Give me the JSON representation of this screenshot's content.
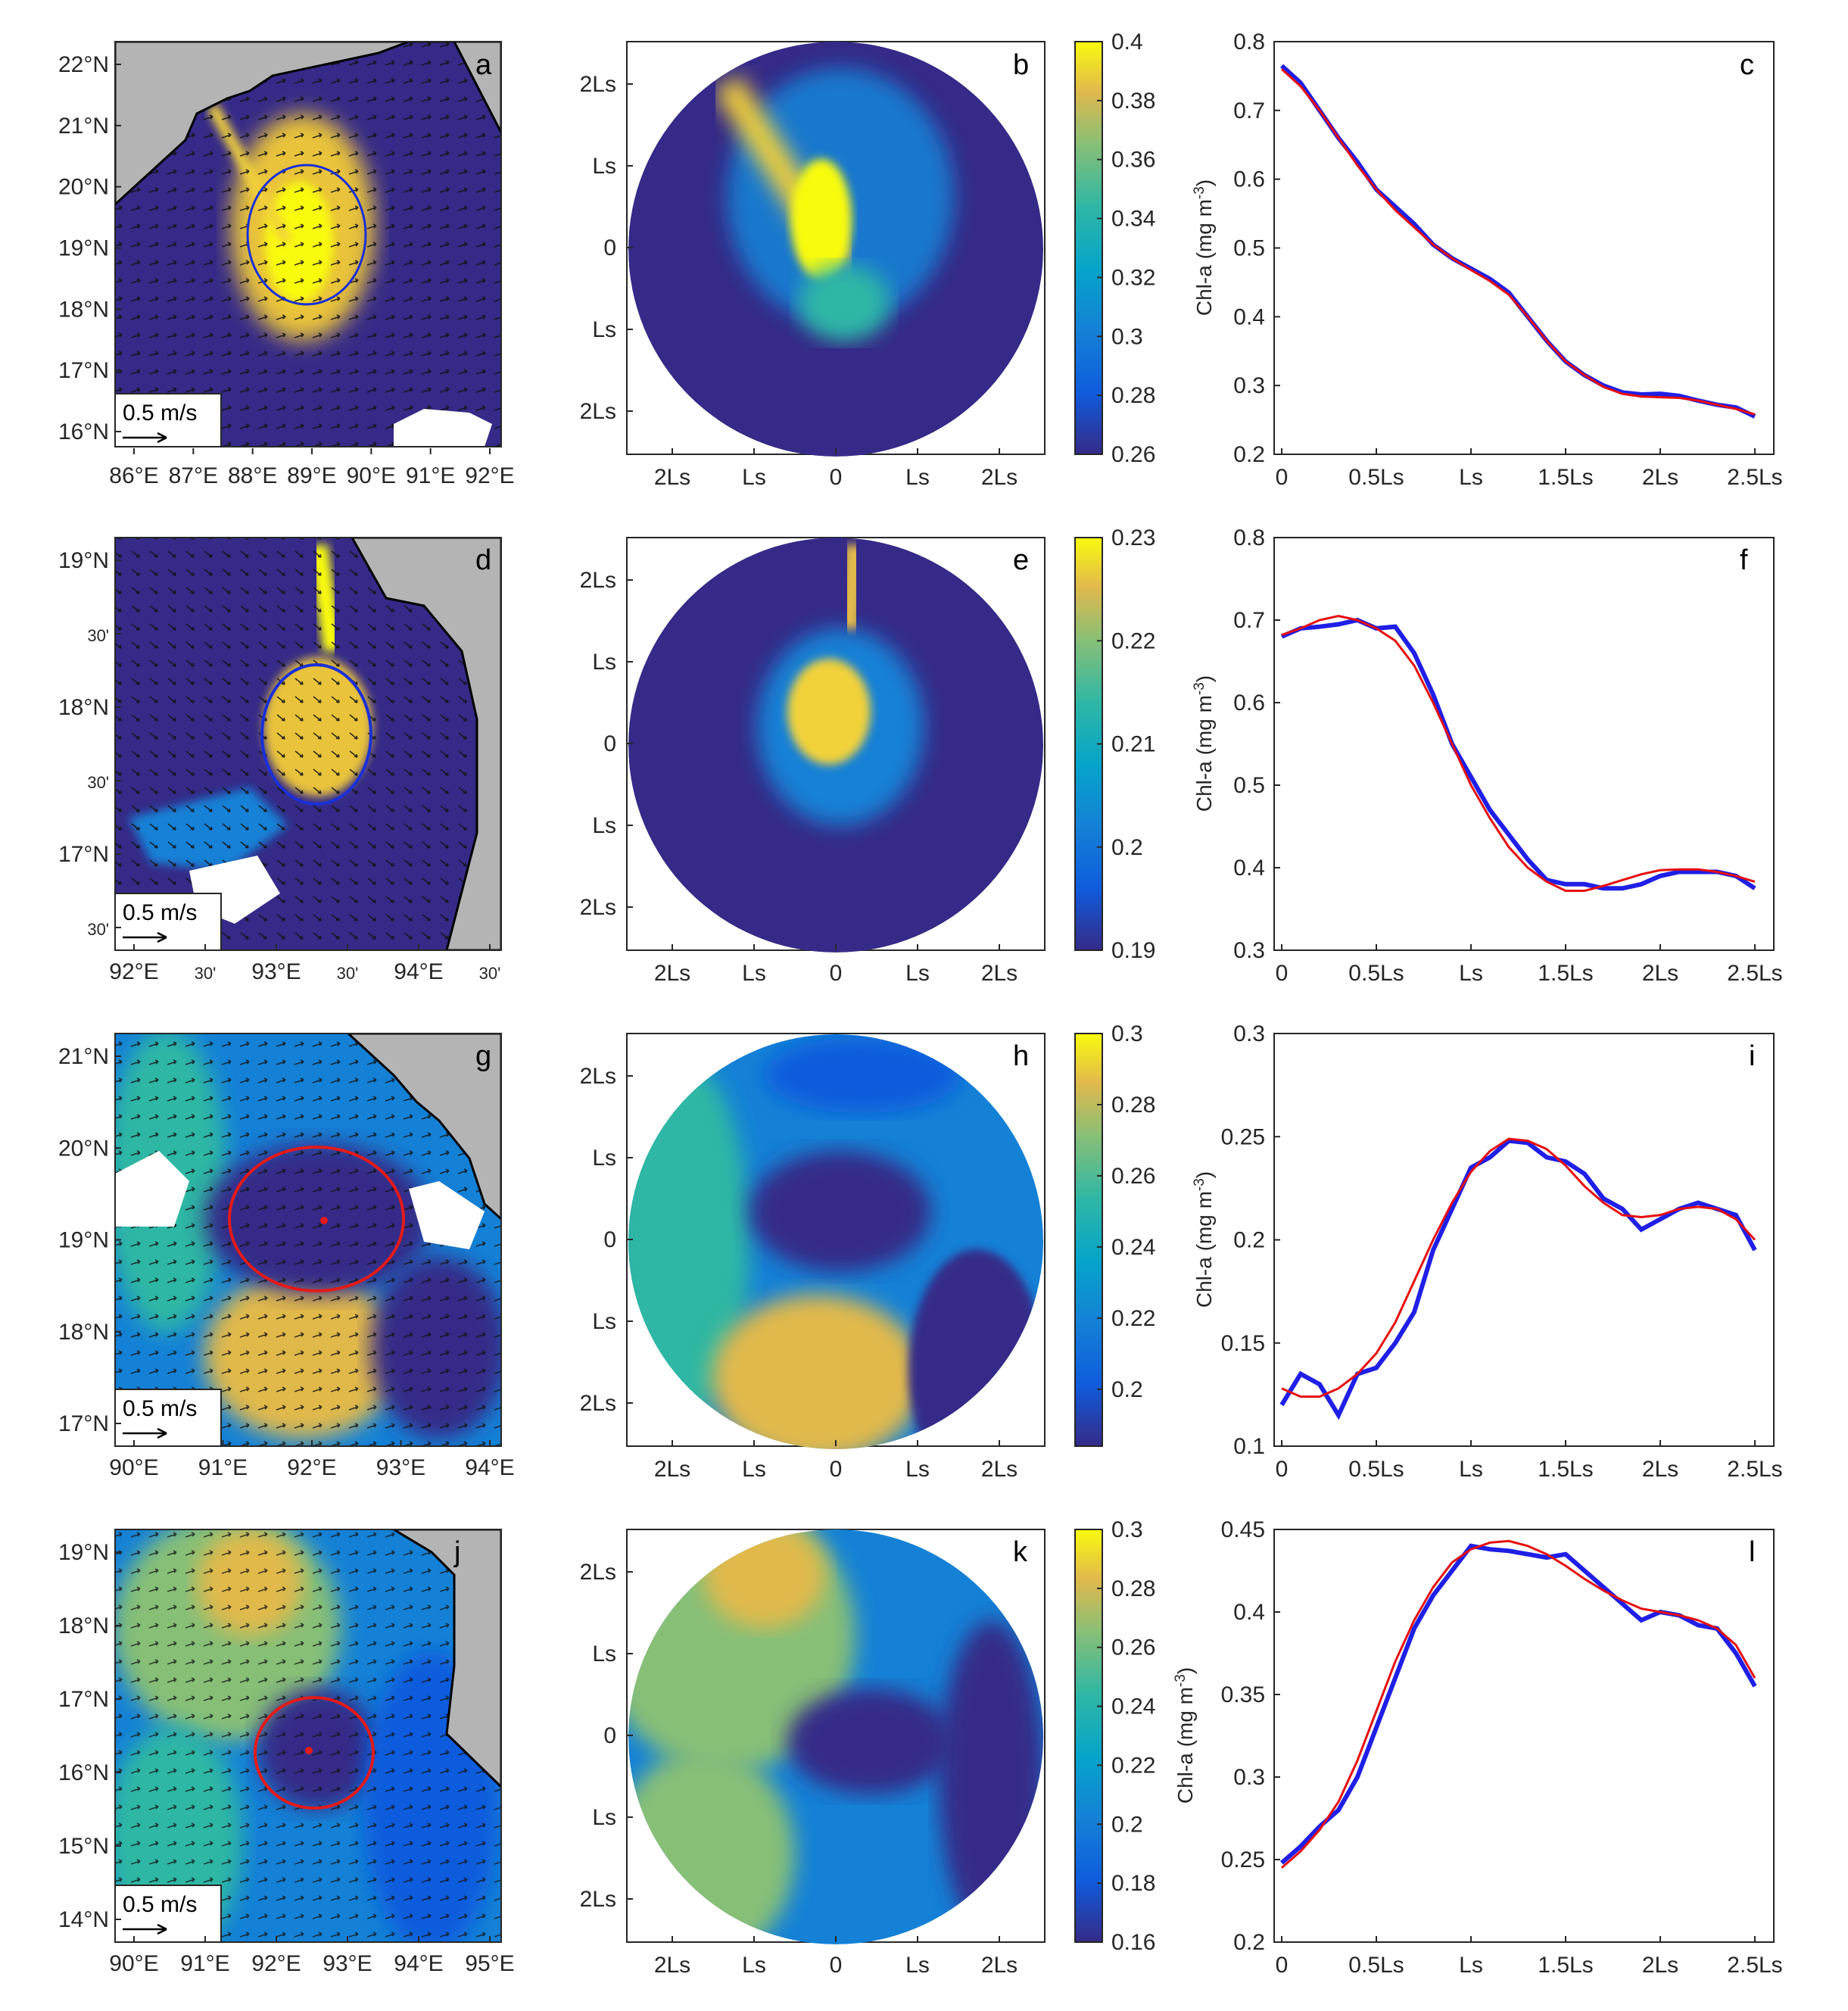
{
  "figure": {
    "rows": [
      {
        "map": {
          "label": "a",
          "lat_ticks": [
            "22°N",
            "21°N",
            "20°N",
            "19°N",
            "18°N",
            "17°N",
            "16°N"
          ],
          "lon_ticks": [
            "86°E",
            "87°E",
            "88°E",
            "89°E",
            "90°E",
            "91°E",
            "92°E"
          ],
          "scale_label": "0.5 m/s",
          "eddy_color": "#1a2fd6",
          "land": "top"
        },
        "composite": {
          "label": "b",
          "cbar_ticks": [
            "0.4",
            "0.38",
            "0.36",
            "0.34",
            "0.32",
            "0.3",
            "0.28",
            "0.26"
          ],
          "pattern": "streak"
        },
        "profile": {
          "label": "c"
        }
      },
      {
        "map": {
          "label": "d",
          "lat_ticks": [
            "19°N",
            "30'",
            "18°N",
            "30'",
            "17°N",
            "30'"
          ],
          "lon_ticks": [
            "92°E",
            "30'",
            "93°E",
            "30'",
            "94°E",
            "30'"
          ],
          "scale_label": "0.5 m/s",
          "eddy_color": "#1a2fd6",
          "land": "right"
        },
        "composite": {
          "label": "e",
          "cbar_ticks": [
            "0.23",
            "0.22",
            "0.21",
            "0.2",
            "0.19"
          ],
          "pattern": "center"
        },
        "profile": {
          "label": "f"
        }
      },
      {
        "map": {
          "label": "g",
          "lat_ticks": [
            "21°N",
            "20°N",
            "19°N",
            "18°N",
            "17°N"
          ],
          "lon_ticks": [
            "90°E",
            "91°E",
            "92°E",
            "93°E",
            "94°E"
          ],
          "scale_label": "0.5 m/s",
          "eddy_color": "#e11b1b",
          "land": "topright"
        },
        "composite": {
          "label": "h",
          "cbar_ticks": [
            "0.3",
            "0.28",
            "0.26",
            "0.24",
            "0.22",
            "0.2"
          ],
          "pattern": "ring"
        },
        "profile": {
          "label": "i"
        }
      },
      {
        "map": {
          "label": "j",
          "lat_ticks": [
            "19°N",
            "18°N",
            "17°N",
            "16°N",
            "15°N",
            "14°N"
          ],
          "lon_ticks": [
            "90°E",
            "91°E",
            "92°E",
            "93°E",
            "94°E",
            "95°E"
          ],
          "scale_label": "0.5 m/s",
          "eddy_color": "#e11b1b",
          "land": "right2"
        },
        "composite": {
          "label": "k",
          "cbar_ticks": [
            "0.3",
            "0.28",
            "0.26",
            "0.24",
            "0.22",
            "0.2",
            "0.18",
            "0.16"
          ],
          "pattern": "ring2"
        },
        "profile": {
          "label": "l"
        }
      }
    ],
    "composite_axis": {
      "y_ticks": [
        "2Ls",
        "Ls",
        "0",
        "Ls",
        "2Ls"
      ],
      "x_ticks": [
        "2Ls",
        "Ls",
        "0",
        "Ls",
        "2Ls"
      ]
    },
    "profile_axis": {
      "ylabel_main": "Chl-a (mg m",
      "ylabel_sup": "-3",
      "ylabel_end": ")",
      "x_ticks": [
        "0",
        "0.5Ls",
        "Ls",
        "1.5Ls",
        "2Ls",
        "2.5Ls"
      ]
    },
    "series_colors": {
      "observed": "#1f1fe6",
      "fit": "#e60f0f"
    }
  },
  "chart_data": [
    {
      "type": "line",
      "panel": "c",
      "title": "",
      "xlabel": "",
      "ylabel": "Chl-a (mg m-3)",
      "ylim": [
        0.2,
        0.8
      ],
      "y_ticks": [
        0.2,
        0.3,
        0.4,
        0.5,
        0.6,
        0.7,
        0.8
      ],
      "x": [
        0.0,
        0.1,
        0.2,
        0.3,
        0.4,
        0.5,
        0.6,
        0.7,
        0.8,
        0.9,
        1.0,
        1.1,
        1.2,
        1.3,
        1.4,
        1.5,
        1.6,
        1.7,
        1.8,
        1.9,
        2.0,
        2.1,
        2.2,
        2.3,
        2.4,
        2.5
      ],
      "series": [
        {
          "name": "observed",
          "values": [
            0.765,
            0.74,
            0.7,
            0.66,
            0.625,
            0.585,
            0.56,
            0.535,
            0.505,
            0.485,
            0.47,
            0.455,
            0.435,
            0.4,
            0.365,
            0.335,
            0.315,
            0.3,
            0.29,
            0.287,
            0.288,
            0.285,
            0.278,
            0.272,
            0.268,
            0.255
          ]
        },
        {
          "name": "fit",
          "values": [
            0.76,
            0.735,
            0.7,
            0.66,
            0.62,
            0.585,
            0.555,
            0.53,
            0.505,
            0.485,
            0.468,
            0.452,
            0.432,
            0.4,
            0.365,
            0.335,
            0.315,
            0.298,
            0.288,
            0.284,
            0.283,
            0.282,
            0.278,
            0.272,
            0.266,
            0.258
          ]
        }
      ]
    },
    {
      "type": "line",
      "panel": "f",
      "title": "",
      "xlabel": "",
      "ylabel": "Chl-a (mg m-3)",
      "ylim": [
        0.3,
        0.8
      ],
      "y_ticks": [
        0.3,
        0.4,
        0.5,
        0.6,
        0.7,
        0.8
      ],
      "x": [
        0.0,
        0.1,
        0.2,
        0.3,
        0.4,
        0.5,
        0.6,
        0.7,
        0.8,
        0.9,
        1.0,
        1.1,
        1.2,
        1.3,
        1.4,
        1.5,
        1.6,
        1.7,
        1.8,
        1.9,
        2.0,
        2.1,
        2.2,
        2.3,
        2.4,
        2.5
      ],
      "series": [
        {
          "name": "observed",
          "values": [
            0.68,
            0.69,
            0.692,
            0.695,
            0.7,
            0.69,
            0.692,
            0.66,
            0.61,
            0.55,
            0.51,
            0.47,
            0.44,
            0.41,
            0.385,
            0.38,
            0.38,
            0.375,
            0.375,
            0.38,
            0.39,
            0.395,
            0.395,
            0.395,
            0.39,
            0.375
          ]
        },
        {
          "name": "fit",
          "values": [
            0.682,
            0.69,
            0.7,
            0.705,
            0.7,
            0.69,
            0.675,
            0.645,
            0.6,
            0.55,
            0.5,
            0.46,
            0.425,
            0.4,
            0.383,
            0.372,
            0.372,
            0.378,
            0.385,
            0.392,
            0.397,
            0.398,
            0.398,
            0.395,
            0.39,
            0.383
          ]
        }
      ]
    },
    {
      "type": "line",
      "panel": "i",
      "title": "",
      "xlabel": "",
      "ylabel": "Chl-a (mg m-3)",
      "ylim": [
        0.1,
        0.3
      ],
      "y_ticks": [
        0.1,
        0.15,
        0.2,
        0.25,
        0.3
      ],
      "x": [
        0.0,
        0.1,
        0.2,
        0.3,
        0.4,
        0.5,
        0.6,
        0.7,
        0.8,
        0.9,
        1.0,
        1.1,
        1.2,
        1.3,
        1.4,
        1.5,
        1.6,
        1.7,
        1.8,
        1.9,
        2.0,
        2.1,
        2.2,
        2.3,
        2.4,
        2.5
      ],
      "series": [
        {
          "name": "observed",
          "values": [
            0.12,
            0.135,
            0.13,
            0.115,
            0.135,
            0.138,
            0.15,
            0.165,
            0.195,
            0.215,
            0.235,
            0.24,
            0.248,
            0.247,
            0.24,
            0.238,
            0.232,
            0.22,
            0.215,
            0.205,
            0.21,
            0.215,
            0.218,
            0.215,
            0.212,
            0.195
          ]
        },
        {
          "name": "fit",
          "values": [
            0.128,
            0.124,
            0.124,
            0.128,
            0.135,
            0.145,
            0.16,
            0.18,
            0.2,
            0.218,
            0.233,
            0.243,
            0.249,
            0.248,
            0.244,
            0.236,
            0.226,
            0.218,
            0.212,
            0.211,
            0.212,
            0.215,
            0.216,
            0.215,
            0.21,
            0.2
          ]
        }
      ]
    },
    {
      "type": "line",
      "panel": "l",
      "title": "",
      "xlabel": "",
      "ylabel": "Chl-a (mg m-3)",
      "ylim": [
        0.2,
        0.45
      ],
      "y_ticks": [
        0.2,
        0.25,
        0.3,
        0.35,
        0.4,
        0.45
      ],
      "x": [
        0.0,
        0.1,
        0.2,
        0.3,
        0.4,
        0.5,
        0.6,
        0.7,
        0.8,
        0.9,
        1.0,
        1.1,
        1.2,
        1.3,
        1.4,
        1.5,
        1.6,
        1.7,
        1.8,
        1.9,
        2.0,
        2.1,
        2.2,
        2.3,
        2.4,
        2.5
      ],
      "series": [
        {
          "name": "observed",
          "values": [
            0.248,
            0.258,
            0.27,
            0.28,
            0.3,
            0.33,
            0.36,
            0.39,
            0.41,
            0.425,
            0.44,
            0.438,
            0.437,
            0.435,
            0.433,
            0.435,
            0.425,
            0.415,
            0.405,
            0.395,
            0.4,
            0.398,
            0.392,
            0.39,
            0.375,
            0.355
          ]
        },
        {
          "name": "fit",
          "values": [
            0.245,
            0.255,
            0.268,
            0.285,
            0.31,
            0.34,
            0.37,
            0.395,
            0.415,
            0.43,
            0.438,
            0.442,
            0.443,
            0.44,
            0.435,
            0.428,
            0.42,
            0.413,
            0.407,
            0.402,
            0.4,
            0.398,
            0.395,
            0.39,
            0.38,
            0.36
          ]
        }
      ]
    }
  ]
}
